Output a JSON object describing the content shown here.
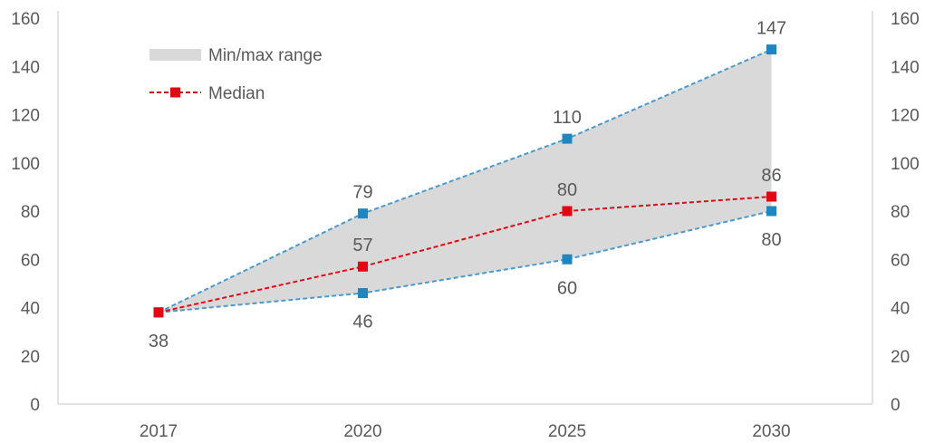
{
  "chart_data": {
    "type": "area",
    "categories": [
      "2017",
      "2020",
      "2025",
      "2030"
    ],
    "series": [
      {
        "name": "Min/max range",
        "kind": "band",
        "min": [
          38,
          46,
          60,
          80
        ],
        "max": [
          38,
          79,
          110,
          147
        ],
        "color": "#d9d9d9",
        "edge_color": "#4a9acd",
        "marker_color": "#1f86c2"
      },
      {
        "name": "Median",
        "kind": "line",
        "values": [
          38,
          57,
          80,
          86
        ],
        "color": "#e30613",
        "marker_color": "#e30613"
      }
    ],
    "data_labels": {
      "max": [
        "",
        "79",
        "110",
        "147"
      ],
      "min": [
        "38",
        "46",
        "60",
        "80"
      ],
      "median": [
        "",
        "57",
        "80",
        "86"
      ]
    },
    "ylim": [
      0,
      160
    ],
    "y_ticks": [
      "0",
      "20",
      "40",
      "60",
      "80",
      "100",
      "120",
      "140",
      "160"
    ],
    "secondary_y_ticks": [
      "0",
      "20",
      "40",
      "60",
      "80",
      "100",
      "120",
      "140",
      "160"
    ],
    "legend": {
      "position": "top-left",
      "items": [
        {
          "label": "Min/max range",
          "icon": "gray-band-swatch"
        },
        {
          "label": "Median",
          "icon": "red-dashed-line-square-marker"
        }
      ]
    },
    "grid": false,
    "title": "",
    "xlabel": "",
    "ylabel": ""
  }
}
